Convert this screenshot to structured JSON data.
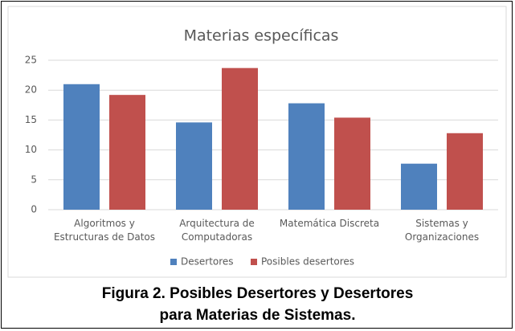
{
  "chart_data": {
    "type": "bar",
    "title": "Materias específicas",
    "categories": [
      "Algoritmos y\nEstructuras de Datos",
      "Arquitectura de\nComputadoras",
      "Matemática Discreta",
      "Sistemas y\nOrganizaciones"
    ],
    "series": [
      {
        "name": "Desertores",
        "color": "#4f81bd",
        "values": [
          21,
          14.6,
          17.8,
          7.7
        ]
      },
      {
        "name": "Posibles desertores",
        "color": "#c0504d",
        "values": [
          19.2,
          23.7,
          15.4,
          12.8
        ]
      }
    ],
    "ylim": [
      0,
      25
    ],
    "yticks": [
      0,
      5,
      10,
      15,
      20,
      25
    ],
    "grid": true,
    "legend": "bottom"
  },
  "caption": "Figura 2. Posibles Desertores y Desertores\npara Materias de Sistemas."
}
